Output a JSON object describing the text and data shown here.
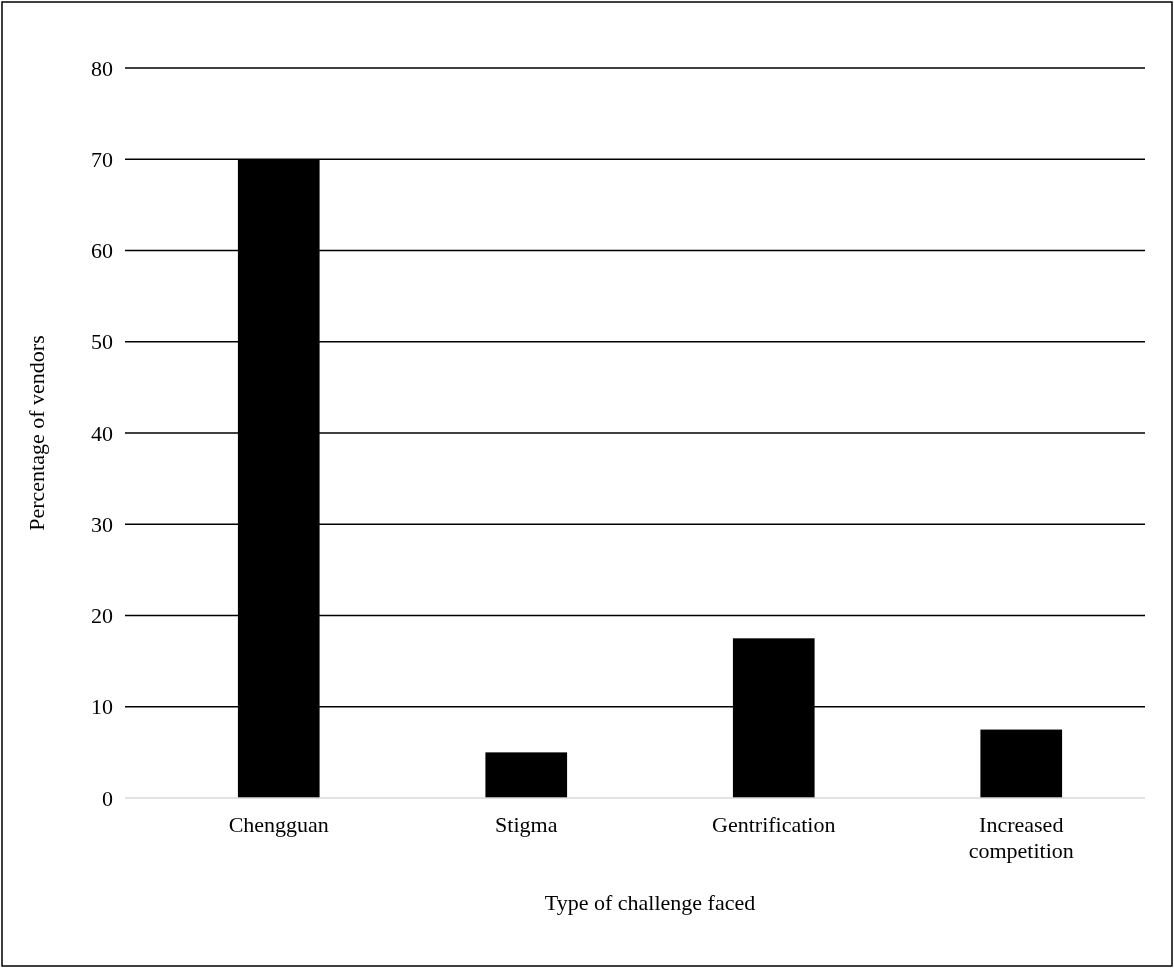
{
  "chart_data": {
    "type": "bar",
    "xlabel": "Type of challenge faced",
    "ylabel": "Percentage of vendors",
    "categories": [
      "Chengguan",
      "Stigma",
      "Gentrification",
      "Increased competition"
    ],
    "values": [
      70,
      5,
      17.5,
      7.5
    ],
    "color": "#000000",
    "ylim": [
      0,
      80
    ],
    "yticks": [
      0,
      10,
      20,
      30,
      40,
      50,
      60,
      70,
      80
    ],
    "grid": "y"
  }
}
